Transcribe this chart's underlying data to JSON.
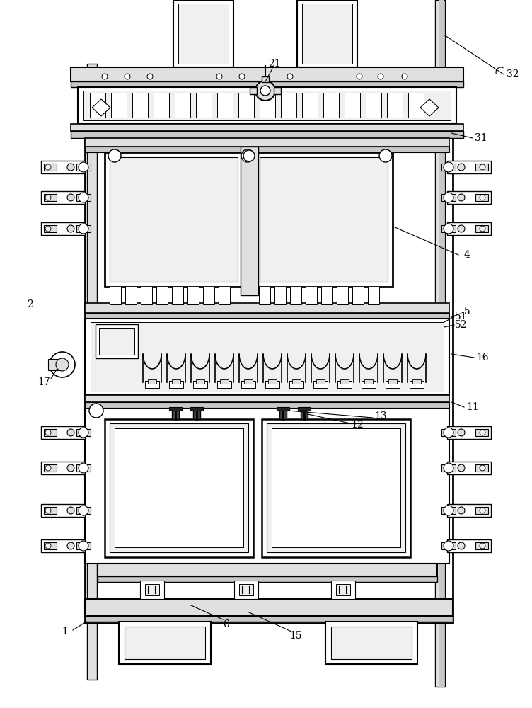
{
  "bg_color": "#ffffff",
  "line_color": "#000000",
  "gray1": "#c8c8c8",
  "gray2": "#e0e0e0",
  "gray3": "#f0f0f0",
  "dark": "#444444"
}
